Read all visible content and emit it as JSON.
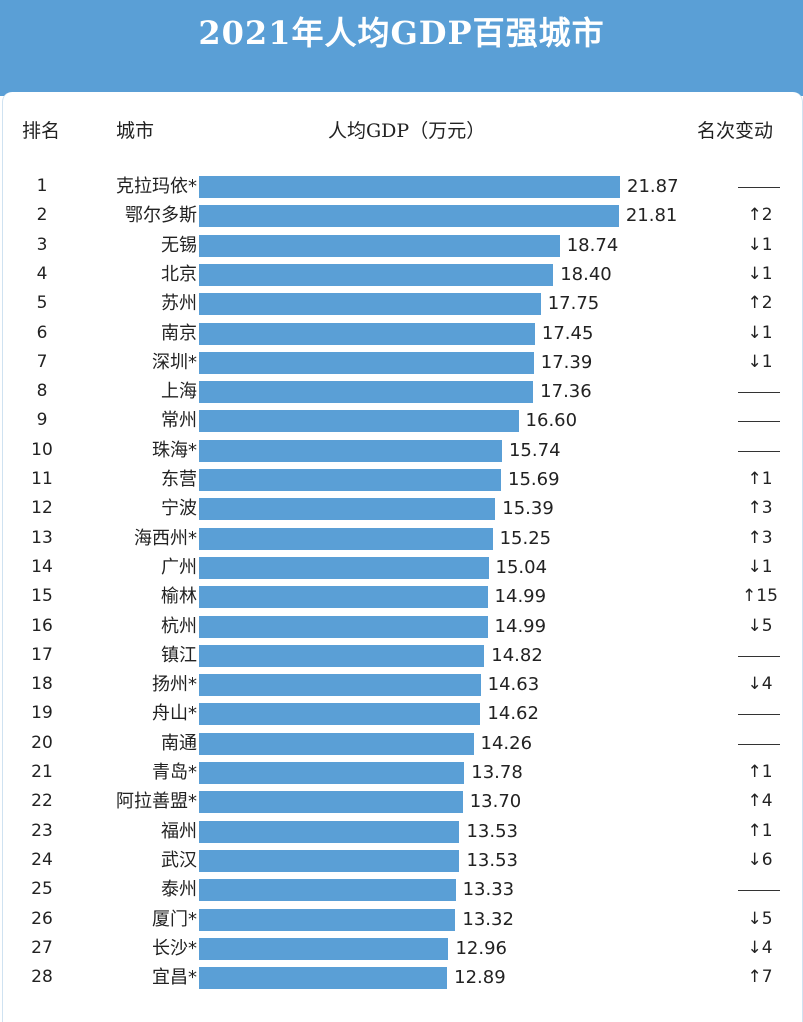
{
  "header": {
    "title": "2021年人均GDP百强城市",
    "col_rank": "排名",
    "col_city": "城市",
    "col_gdp": "人均GDP（万元）",
    "col_change": "名次变动"
  },
  "colors": {
    "bar": "#5a9fd6",
    "header_bg": "#5a9fd6"
  },
  "chart_data": {
    "type": "bar",
    "orientation": "horizontal",
    "title": "2021年人均GDP百强城市",
    "xlabel": "人均GDP（万元）",
    "ylabel": "城市",
    "xlim": [
      0,
      21.87
    ],
    "grid": false,
    "rows": [
      {
        "rank": "1",
        "city": "克拉玛依*",
        "value": 21.87,
        "label": "21.87",
        "change": ""
      },
      {
        "rank": "2",
        "city": "鄂尔多斯",
        "value": 21.81,
        "label": "21.81",
        "change": "↑2"
      },
      {
        "rank": "3",
        "city": "无锡",
        "value": 18.74,
        "label": "18.74",
        "change": "↓1"
      },
      {
        "rank": "4",
        "city": "北京",
        "value": 18.4,
        "label": "18.40",
        "change": "↓1"
      },
      {
        "rank": "5",
        "city": "苏州",
        "value": 17.75,
        "label": "17.75",
        "change": "↑2"
      },
      {
        "rank": "6",
        "city": "南京",
        "value": 17.45,
        "label": "17.45",
        "change": "↓1"
      },
      {
        "rank": "7",
        "city": "深圳*",
        "value": 17.39,
        "label": "17.39",
        "change": "↓1"
      },
      {
        "rank": "8",
        "city": "上海",
        "value": 17.36,
        "label": "17.36",
        "change": ""
      },
      {
        "rank": "9",
        "city": "常州",
        "value": 16.6,
        "label": "16.60",
        "change": ""
      },
      {
        "rank": "10",
        "city": "珠海*",
        "value": 15.74,
        "label": "15.74",
        "change": ""
      },
      {
        "rank": "11",
        "city": "东营",
        "value": 15.69,
        "label": "15.69",
        "change": "↑1"
      },
      {
        "rank": "12",
        "city": "宁波",
        "value": 15.39,
        "label": "15.39",
        "change": "↑3"
      },
      {
        "rank": "13",
        "city": "海西州*",
        "value": 15.25,
        "label": "15.25",
        "change": "↑3"
      },
      {
        "rank": "14",
        "city": "广州",
        "value": 15.04,
        "label": "15.04",
        "change": "↓1"
      },
      {
        "rank": "15",
        "city": "榆林",
        "value": 14.99,
        "label": "14.99",
        "change": "↑15"
      },
      {
        "rank": "16",
        "city": "杭州",
        "value": 14.99,
        "label": "14.99",
        "change": "↓5"
      },
      {
        "rank": "17",
        "city": "镇江",
        "value": 14.82,
        "label": "14.82",
        "change": ""
      },
      {
        "rank": "18",
        "city": "扬州*",
        "value": 14.63,
        "label": "14.63",
        "change": "↓4"
      },
      {
        "rank": "19",
        "city": "舟山*",
        "value": 14.62,
        "label": "14.62",
        "change": ""
      },
      {
        "rank": "20",
        "city": "南通",
        "value": 14.26,
        "label": "14.26",
        "change": ""
      },
      {
        "rank": "21",
        "city": "青岛*",
        "value": 13.78,
        "label": "13.78",
        "change": "↑1"
      },
      {
        "rank": "22",
        "city": "阿拉善盟*",
        "value": 13.7,
        "label": "13.70",
        "change": "↑4"
      },
      {
        "rank": "23",
        "city": "福州",
        "value": 13.53,
        "label": "13.53",
        "change": "↑1"
      },
      {
        "rank": "24",
        "city": "武汉",
        "value": 13.53,
        "label": "13.53",
        "change": "↓6"
      },
      {
        "rank": "25",
        "city": "泰州",
        "value": 13.33,
        "label": "13.33",
        "change": ""
      },
      {
        "rank": "26",
        "city": "厦门*",
        "value": 13.32,
        "label": "13.32",
        "change": "↓5"
      },
      {
        "rank": "27",
        "city": "长沙*",
        "value": 12.96,
        "label": "12.96",
        "change": "↓4"
      },
      {
        "rank": "28",
        "city": "宜昌*",
        "value": 12.89,
        "label": "12.89",
        "change": "↑7"
      }
    ]
  }
}
